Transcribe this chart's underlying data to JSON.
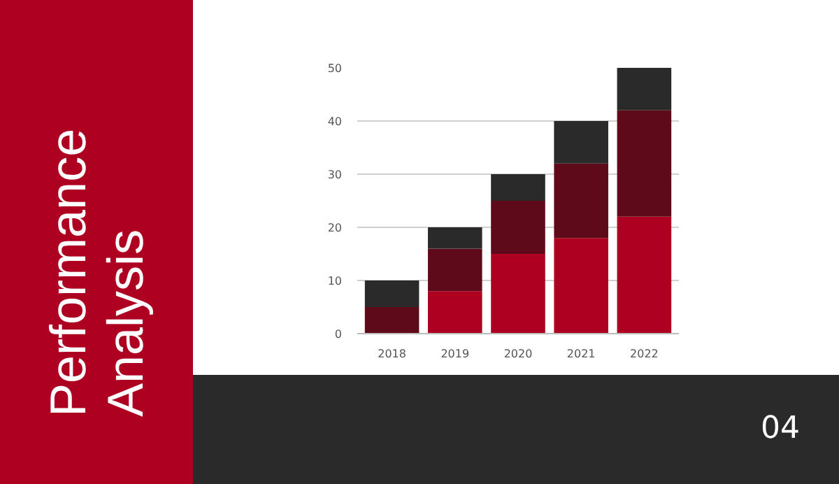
{
  "chart_data": {
    "type": "bar",
    "title": "Performance Analysis",
    "stacked": true,
    "categories": [
      "2018",
      "2019",
      "2020",
      "2021",
      "2022"
    ],
    "series": [
      {
        "color": "#ae0020",
        "values": [
          0,
          8,
          15,
          18,
          22
        ]
      },
      {
        "color": "#5e0a1a",
        "values": [
          5,
          8,
          10,
          14,
          20
        ]
      },
      {
        "color": "#2a2a2a",
        "values": [
          5,
          4,
          5,
          8,
          8
        ]
      }
    ],
    "ylim": [
      0,
      50
    ],
    "yticks": [
      0,
      10,
      20,
      30,
      40,
      50
    ],
    "grid": "y",
    "annotations": [
      "04"
    ]
  }
}
